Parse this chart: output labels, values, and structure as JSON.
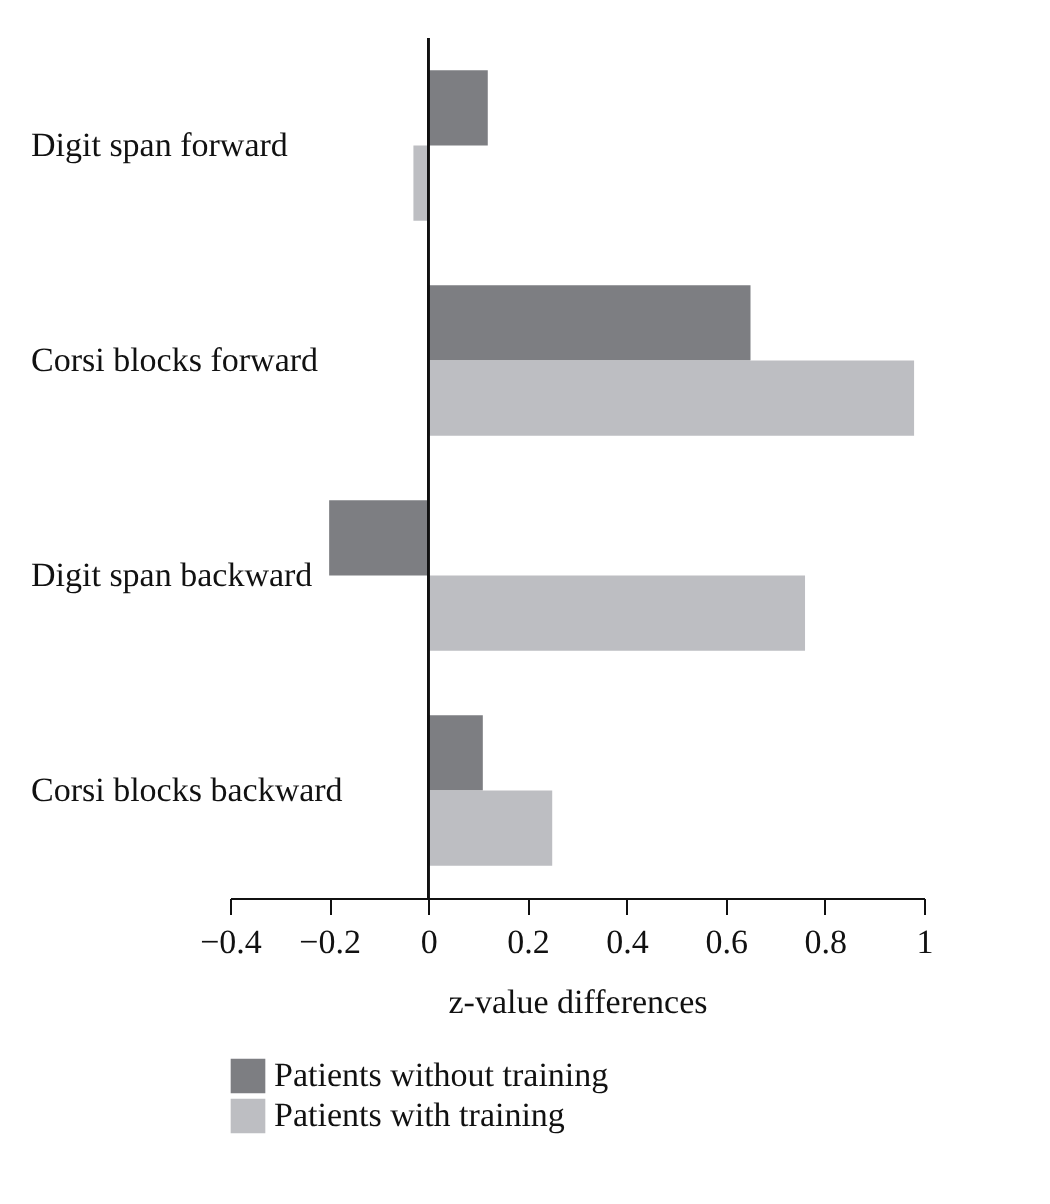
{
  "chart_data": {
    "type": "bar",
    "orientation": "horizontal",
    "xlabel": "z-value differences",
    "categories": [
      "Digit span forward",
      "Corsi blocks forward",
      "Digit span backward",
      "Corsi blocks backward"
    ],
    "series": [
      {
        "name": "Patients without training",
        "color": "#7d7e82",
        "values": [
          0.12,
          0.65,
          -0.2,
          0.11
        ]
      },
      {
        "name": "Patients with training",
        "color": "#bdbec2",
        "values": [
          -0.03,
          0.98,
          0.76,
          0.25
        ]
      }
    ],
    "xlim": [
      -0.4,
      1
    ],
    "xticks": [
      -0.4,
      -0.2,
      0,
      0.2,
      0.4,
      0.6,
      0.8,
      1
    ],
    "grid": false,
    "legend": "bottom"
  }
}
